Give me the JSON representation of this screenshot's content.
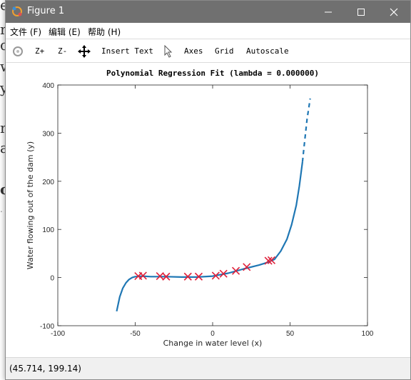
{
  "background_text": [
    "e",
    "m",
    "c",
    "w",
    "y",
    "n",
    "a",
    "or",
    "."
  ],
  "window": {
    "title": "Figure 1"
  },
  "menu": [
    {
      "label": "文件 (F)"
    },
    {
      "label": "编辑 (E)"
    },
    {
      "label": "帮助 (H)"
    }
  ],
  "toolbar": {
    "zoom_in": "Z+",
    "zoom_out": "Z-",
    "insert_text": "Insert Text",
    "axes": "Axes",
    "grid": "Grid",
    "autoscale": "Autoscale"
  },
  "status": {
    "coords": "(45.714, 199.14)"
  },
  "chart_data": {
    "type": "scatter",
    "title": "Polynomial Regression Fit (lambda = 0.000000)",
    "xlabel": "Change in water level (x)",
    "ylabel": "Water flowing out of the dam (y)",
    "xlim": [
      -100,
      100
    ],
    "ylim": [
      -100,
      400
    ],
    "xticks": [
      -100,
      -50,
      0,
      50,
      100
    ],
    "yticks": [
      -100,
      0,
      100,
      200,
      300,
      400
    ],
    "grid": false,
    "points": [
      {
        "x": -48,
        "y": 3
      },
      {
        "x": -45,
        "y": 4
      },
      {
        "x": -34,
        "y": 3
      },
      {
        "x": -30,
        "y": 2
      },
      {
        "x": -16,
        "y": 2
      },
      {
        "x": -9,
        "y": 2
      },
      {
        "x": 2,
        "y": 4
      },
      {
        "x": 7,
        "y": 8
      },
      {
        "x": 15,
        "y": 14
      },
      {
        "x": 22,
        "y": 22
      },
      {
        "x": 36,
        "y": 35
      },
      {
        "x": 38,
        "y": 36
      }
    ],
    "fit_curve": [
      {
        "x": -62,
        "y": -70
      },
      {
        "x": -60,
        "y": -40
      },
      {
        "x": -58,
        "y": -22
      },
      {
        "x": -56,
        "y": -11
      },
      {
        "x": -54,
        "y": -4
      },
      {
        "x": -52,
        "y": 0
      },
      {
        "x": -50,
        "y": 2
      },
      {
        "x": -45,
        "y": 3
      },
      {
        "x": -40,
        "y": 2
      },
      {
        "x": -30,
        "y": 2
      },
      {
        "x": -20,
        "y": 1
      },
      {
        "x": -10,
        "y": 1
      },
      {
        "x": 0,
        "y": 3
      },
      {
        "x": 10,
        "y": 9
      },
      {
        "x": 20,
        "y": 18
      },
      {
        "x": 30,
        "y": 26
      },
      {
        "x": 35,
        "y": 31
      },
      {
        "x": 40,
        "y": 38
      },
      {
        "x": 44,
        "y": 55
      },
      {
        "x": 48,
        "y": 80
      },
      {
        "x": 51,
        "y": 110
      },
      {
        "x": 54,
        "y": 150
      },
      {
        "x": 56,
        "y": 190
      },
      {
        "x": 58,
        "y": 240
      }
    ],
    "fit_extrapolated": [
      {
        "x": 58,
        "y": 240
      },
      {
        "x": 59,
        "y": 270
      },
      {
        "x": 60,
        "y": 300
      },
      {
        "x": 61,
        "y": 330
      },
      {
        "x": 62,
        "y": 350
      },
      {
        "x": 63,
        "y": 372
      }
    ],
    "colors": {
      "curve": "#1f77b4",
      "points": "#e0203a"
    }
  }
}
